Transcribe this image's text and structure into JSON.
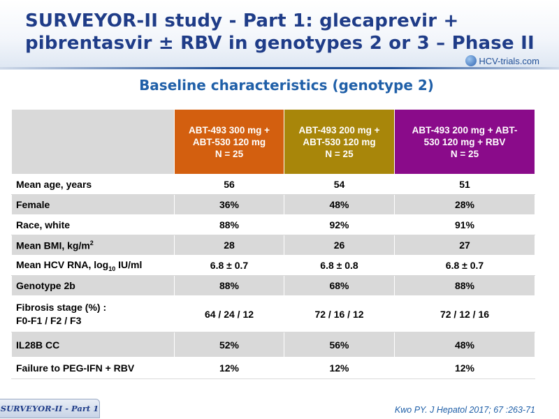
{
  "title": {
    "line1": "SURVEYOR-II study - Part 1: glecaprevir +",
    "line2": "pibrentasvir ± RBV in genotypes 2 or 3 – Phase II"
  },
  "logo": {
    "text": "HCV-trials.com"
  },
  "subtitle": "Baseline characteristics (genotype 2)",
  "table": {
    "columns": [
      {
        "line1": "ABT-493 300 mg +",
        "line2": "ABT-530 120 mg",
        "line3": "N = 25",
        "color": "#d35f0f"
      },
      {
        "line1": "ABT-493 200 mg +",
        "line2": "ABT-530 120 mg",
        "line3": "N = 25",
        "color": "#a8860a"
      },
      {
        "line1": "ABT-493 200 mg + ABT-",
        "line2": "530 120 mg + RBV",
        "line3": "N = 25",
        "color": "#8a0b8a"
      }
    ],
    "rows": [
      {
        "label": "Mean age, years",
        "values": [
          "56",
          "54",
          "51"
        ]
      },
      {
        "label": "Female",
        "values": [
          "36%",
          "48%",
          "28%"
        ]
      },
      {
        "label": "Race, white",
        "values": [
          "88%",
          "92%",
          "91%"
        ]
      },
      {
        "label_main": "Mean BMI, kg/m",
        "label_sup": "2",
        "values": [
          "28",
          "26",
          "27"
        ]
      },
      {
        "label_main": "Mean HCV RNA, log",
        "label_sub": "10",
        "label_tail": " IU/ml",
        "values": [
          "6.8 ± 0.7",
          "6.8 ± 0.8",
          "6.8 ± 0.7"
        ]
      },
      {
        "label": "Genotype 2b",
        "values": [
          "88%",
          "68%",
          "88%"
        ]
      },
      {
        "label_line1": "Fibrosis stage (%) :",
        "label_line2": "F0-F1 / F2 / F3",
        "values": [
          "64 / 24 / 12",
          "72 / 16 / 12",
          "72 / 12 / 16"
        ]
      },
      {
        "label": "IL28B CC",
        "values": [
          "52%",
          "56%",
          "48%"
        ]
      },
      {
        "label": "Failure to PEG-IFN + RBV",
        "values": [
          "12%",
          "12%",
          "12%"
        ]
      }
    ]
  },
  "footer": {
    "tab": "SURVEYOR-II - Part 1",
    "citation": "Kwo PY. J Hepatol 2017; 67 :263-71"
  }
}
